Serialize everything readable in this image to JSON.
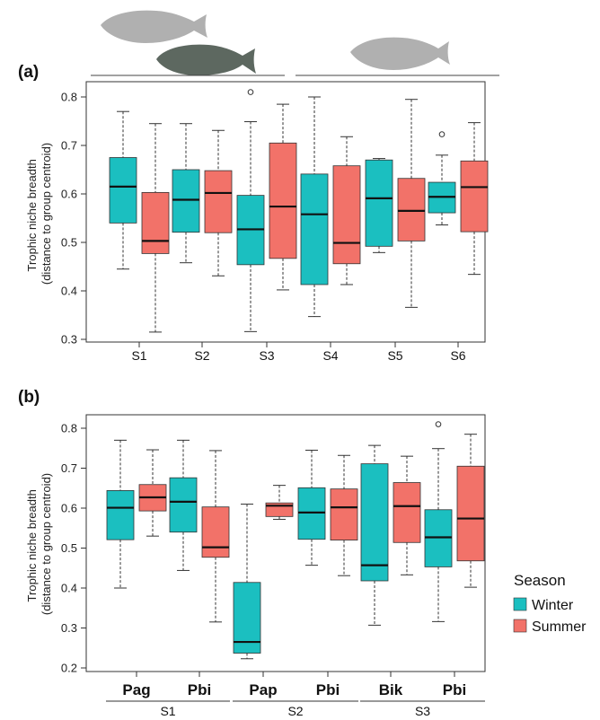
{
  "colors": {
    "winter": "#1bbfc0",
    "summer": "#f27269",
    "axis": "#333333",
    "fish_light": "#b0b0b0",
    "fish_dark": "#5d6860"
  },
  "icons": [
    "fish-silhouette-icon",
    "fish-silhouette-icon",
    "fish-silhouette-icon"
  ],
  "legend": {
    "title": "Season",
    "items": [
      {
        "label": "Winter",
        "color": "#1bbfc0"
      },
      {
        "label": "Summer",
        "color": "#f27269"
      }
    ]
  },
  "chart_data": [
    {
      "type": "boxplot",
      "panel": "(a)",
      "ylabel": [
        "Trophic niche breadth",
        "(distance to group centroid)"
      ],
      "ylim": [
        0.3,
        0.8
      ],
      "yticks": [
        "0.3",
        "0.4",
        "0.5",
        "0.6",
        "0.7",
        "0.8"
      ],
      "categories": [
        "S1",
        "S2",
        "S3",
        "S4",
        "S5",
        "S6"
      ],
      "groups": [
        {
          "category": "S1",
          "boxes": [
            {
              "season": "Winter",
              "min": 0.445,
              "q1": 0.54,
              "median": 0.615,
              "q3": 0.675,
              "max": 0.77,
              "outliers": []
            },
            {
              "season": "Summer",
              "min": 0.315,
              "q1": 0.477,
              "median": 0.503,
              "q3": 0.603,
              "max": 0.745,
              "outliers": []
            }
          ]
        },
        {
          "category": "S2",
          "boxes": [
            {
              "season": "Winter",
              "min": 0.458,
              "q1": 0.521,
              "median": 0.588,
              "q3": 0.65,
              "max": 0.745,
              "outliers": []
            },
            {
              "season": "Summer",
              "min": 0.431,
              "q1": 0.52,
              "median": 0.602,
              "q3": 0.648,
              "max": 0.731,
              "outliers": []
            }
          ]
        },
        {
          "category": "S3",
          "boxes": [
            {
              "season": "Winter",
              "min": 0.316,
              "q1": 0.454,
              "median": 0.527,
              "q3": 0.597,
              "max": 0.749,
              "outliers": [
                0.81
              ]
            },
            {
              "season": "Summer",
              "min": 0.402,
              "q1": 0.467,
              "median": 0.574,
              "q3": 0.705,
              "max": 0.785,
              "outliers": []
            }
          ]
        },
        {
          "category": "S4",
          "boxes": [
            {
              "season": "Winter",
              "min": 0.347,
              "q1": 0.413,
              "median": 0.558,
              "q3": 0.641,
              "max": 0.8,
              "outliers": []
            },
            {
              "season": "Summer",
              "min": 0.413,
              "q1": 0.456,
              "median": 0.499,
              "q3": 0.658,
              "max": 0.718,
              "outliers": []
            }
          ]
        },
        {
          "category": "S5",
          "boxes": [
            {
              "season": "Winter",
              "min": 0.479,
              "q1": 0.492,
              "median": 0.591,
              "q3": 0.67,
              "max": 0.673,
              "outliers": []
            },
            {
              "season": "Summer",
              "min": 0.366,
              "q1": 0.503,
              "median": 0.565,
              "q3": 0.632,
              "max": 0.795,
              "outliers": []
            }
          ]
        },
        {
          "category": "S6",
          "boxes": [
            {
              "season": "Winter",
              "min": 0.536,
              "q1": 0.561,
              "median": 0.594,
              "q3": 0.624,
              "max": 0.68,
              "outliers": [
                0.723
              ]
            },
            {
              "season": "Summer",
              "min": 0.434,
              "q1": 0.522,
              "median": 0.614,
              "q3": 0.668,
              "max": 0.747,
              "outliers": []
            }
          ]
        }
      ]
    },
    {
      "type": "boxplot",
      "panel": "(b)",
      "ylabel": [
        "Trophic niche breadth",
        "(distance to group centroid)"
      ],
      "ylim": [
        0.2,
        0.8
      ],
      "yticks": [
        "0.2",
        "0.3",
        "0.4",
        "0.5",
        "0.6",
        "0.7",
        "0.8"
      ],
      "categories": [
        "Pag",
        "Pbi",
        "Pap",
        "Pbi",
        "Bik",
        "Pbi"
      ],
      "sites": [
        {
          "label": "S1",
          "categories": [
            0,
            1
          ]
        },
        {
          "label": "S2",
          "categories": [
            2,
            3
          ]
        },
        {
          "label": "S3",
          "categories": [
            4,
            5
          ]
        }
      ],
      "groups": [
        {
          "category": "Pag",
          "boxes": [
            {
              "season": "Winter",
              "min": 0.4,
              "q1": 0.521,
              "median": 0.601,
              "q3": 0.644,
              "max": 0.77,
              "outliers": []
            },
            {
              "season": "Summer",
              "min": 0.53,
              "q1": 0.593,
              "median": 0.627,
              "q3": 0.659,
              "max": 0.746,
              "outliers": []
            }
          ]
        },
        {
          "category": "Pbi",
          "boxes": [
            {
              "season": "Winter",
              "min": 0.444,
              "q1": 0.54,
              "median": 0.616,
              "q3": 0.676,
              "max": 0.77,
              "outliers": []
            },
            {
              "season": "Summer",
              "min": 0.315,
              "q1": 0.477,
              "median": 0.502,
              "q3": 0.603,
              "max": 0.744,
              "outliers": []
            }
          ]
        },
        {
          "category": "Pap",
          "boxes": [
            {
              "season": "Winter",
              "min": 0.223,
              "q1": 0.237,
              "median": 0.265,
              "q3": 0.414,
              "max": 0.61,
              "outliers": []
            },
            {
              "season": "Summer",
              "min": 0.572,
              "q1": 0.579,
              "median": 0.606,
              "q3": 0.613,
              "max": 0.657,
              "outliers": []
            }
          ]
        },
        {
          "category": "Pbi",
          "boxes": [
            {
              "season": "Winter",
              "min": 0.457,
              "q1": 0.522,
              "median": 0.589,
              "q3": 0.651,
              "max": 0.745,
              "outliers": []
            },
            {
              "season": "Summer",
              "min": 0.431,
              "q1": 0.52,
              "median": 0.602,
              "q3": 0.648,
              "max": 0.732,
              "outliers": []
            }
          ]
        },
        {
          "category": "Bik",
          "boxes": [
            {
              "season": "Winter",
              "min": 0.307,
              "q1": 0.418,
              "median": 0.457,
              "q3": 0.711,
              "max": 0.757,
              "outliers": []
            },
            {
              "season": "Summer",
              "min": 0.433,
              "q1": 0.514,
              "median": 0.605,
              "q3": 0.664,
              "max": 0.73,
              "outliers": []
            }
          ]
        },
        {
          "category": "Pbi",
          "boxes": [
            {
              "season": "Winter",
              "min": 0.316,
              "q1": 0.453,
              "median": 0.527,
              "q3": 0.596,
              "max": 0.749,
              "outliers": [
                0.81
              ]
            },
            {
              "season": "Summer",
              "min": 0.402,
              "q1": 0.468,
              "median": 0.574,
              "q3": 0.705,
              "max": 0.785,
              "outliers": []
            }
          ]
        }
      ]
    }
  ]
}
